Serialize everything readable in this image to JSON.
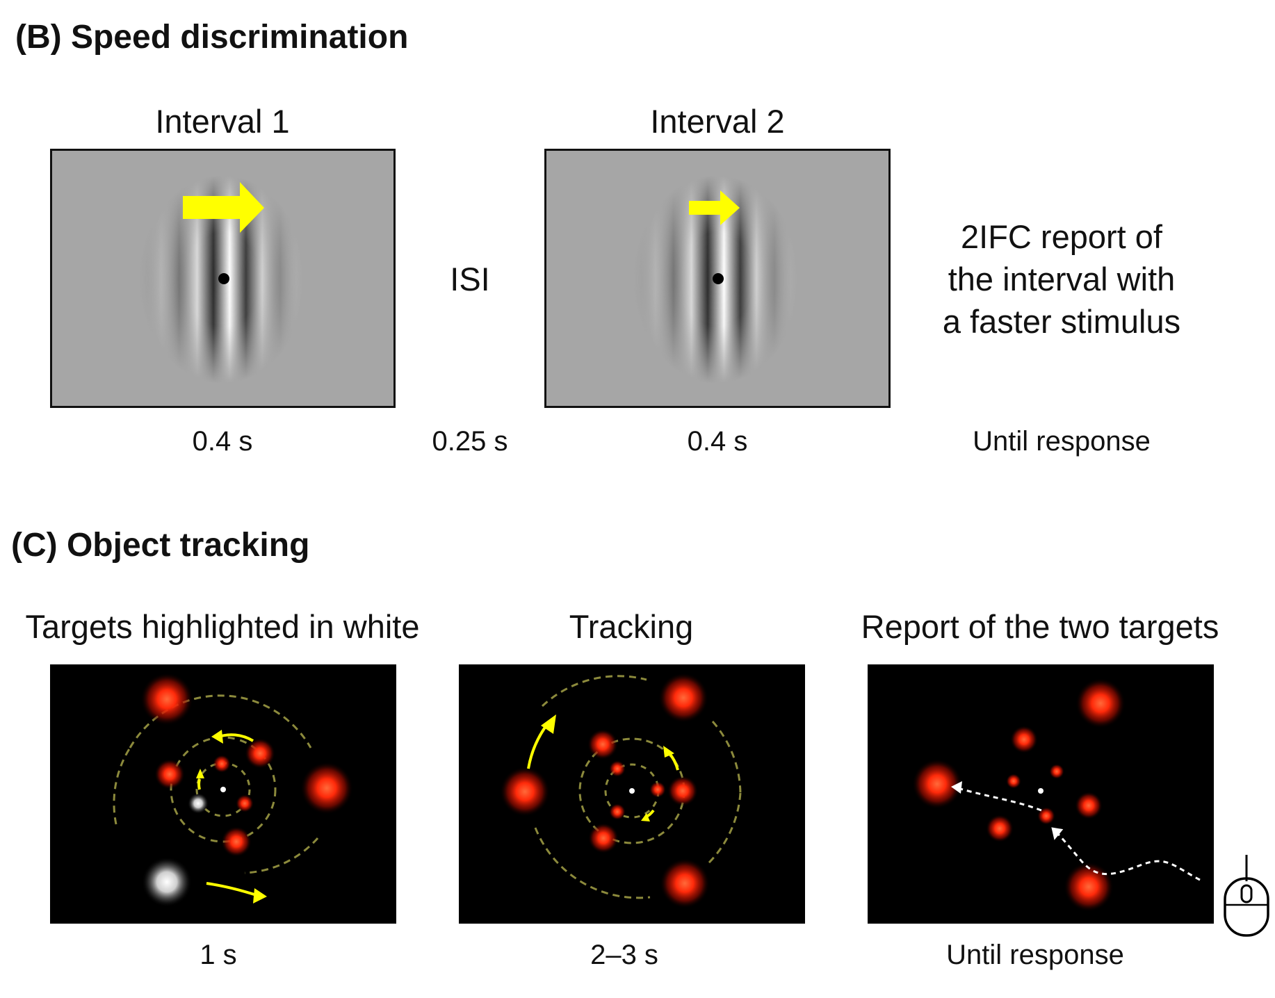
{
  "section_b": {
    "title": "(B) Speed discrimination",
    "interval1": {
      "label": "Interval 1",
      "duration": "0.4 s"
    },
    "isi": {
      "label": "ISI",
      "duration": "0.25 s"
    },
    "interval2": {
      "label": "Interval 2",
      "duration": "0.4 s"
    },
    "response": {
      "lines": [
        "2IFC report of",
        "the interval with",
        "a faster stimulus"
      ],
      "duration": "Until response"
    }
  },
  "section_c": {
    "title": "(C) Object tracking",
    "panel1": {
      "label": "Targets highlighted in white",
      "duration": "1 s"
    },
    "panel2": {
      "label": "Tracking",
      "duration": "2–3 s"
    },
    "panel3": {
      "label": "Report of the two targets",
      "duration": "Until response"
    }
  },
  "colors": {
    "arrow": "#ffff00",
    "grey_background": "#a6a6a6",
    "tracking_background": "#000000",
    "object_red": "#ff3a10",
    "orbit_dashes": "#8c8a3c"
  },
  "icons": [
    "motion-arrow-icon",
    "fixation-dot-icon",
    "computer-mouse-icon"
  ]
}
